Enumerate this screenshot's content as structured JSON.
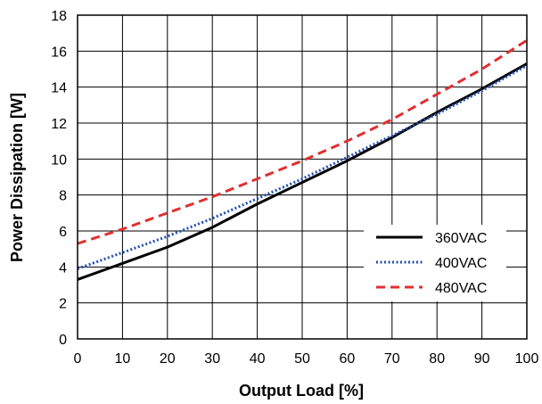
{
  "chart_data": {
    "type": "line",
    "xlabel": "Output Load [%]",
    "ylabel": "Power Dissipation [W]",
    "xlim": [
      0,
      100
    ],
    "ylim": [
      0,
      18
    ],
    "xticks": [
      0,
      10,
      20,
      30,
      40,
      50,
      60,
      70,
      80,
      90,
      100
    ],
    "yticks": [
      0,
      2,
      4,
      6,
      8,
      10,
      12,
      14,
      16,
      18
    ],
    "grid": true,
    "legend_position": "lower-right",
    "series": [
      {
        "name": "360VAC",
        "color": "#000000",
        "style": "solid",
        "x": [
          0,
          10,
          20,
          30,
          40,
          50,
          60,
          70,
          80,
          90,
          100
        ],
        "y": [
          3.3,
          4.2,
          5.1,
          6.2,
          7.5,
          8.7,
          9.9,
          11.2,
          12.6,
          13.9,
          15.3
        ]
      },
      {
        "name": "400VAC",
        "color": "#1f4fb3",
        "style": "dotted",
        "x": [
          0,
          10,
          20,
          30,
          40,
          50,
          60,
          70,
          80,
          90,
          100
        ],
        "y": [
          3.9,
          4.8,
          5.7,
          6.7,
          7.8,
          8.9,
          10.1,
          11.3,
          12.5,
          13.8,
          15.2
        ]
      },
      {
        "name": "480VAC",
        "color": "#e03030",
        "style": "dashed",
        "x": [
          0,
          10,
          20,
          30,
          40,
          50,
          60,
          70,
          80,
          90,
          100
        ],
        "y": [
          5.3,
          6.1,
          7.0,
          7.9,
          8.9,
          9.9,
          11.0,
          12.2,
          13.6,
          15.0,
          16.6
        ]
      }
    ]
  }
}
